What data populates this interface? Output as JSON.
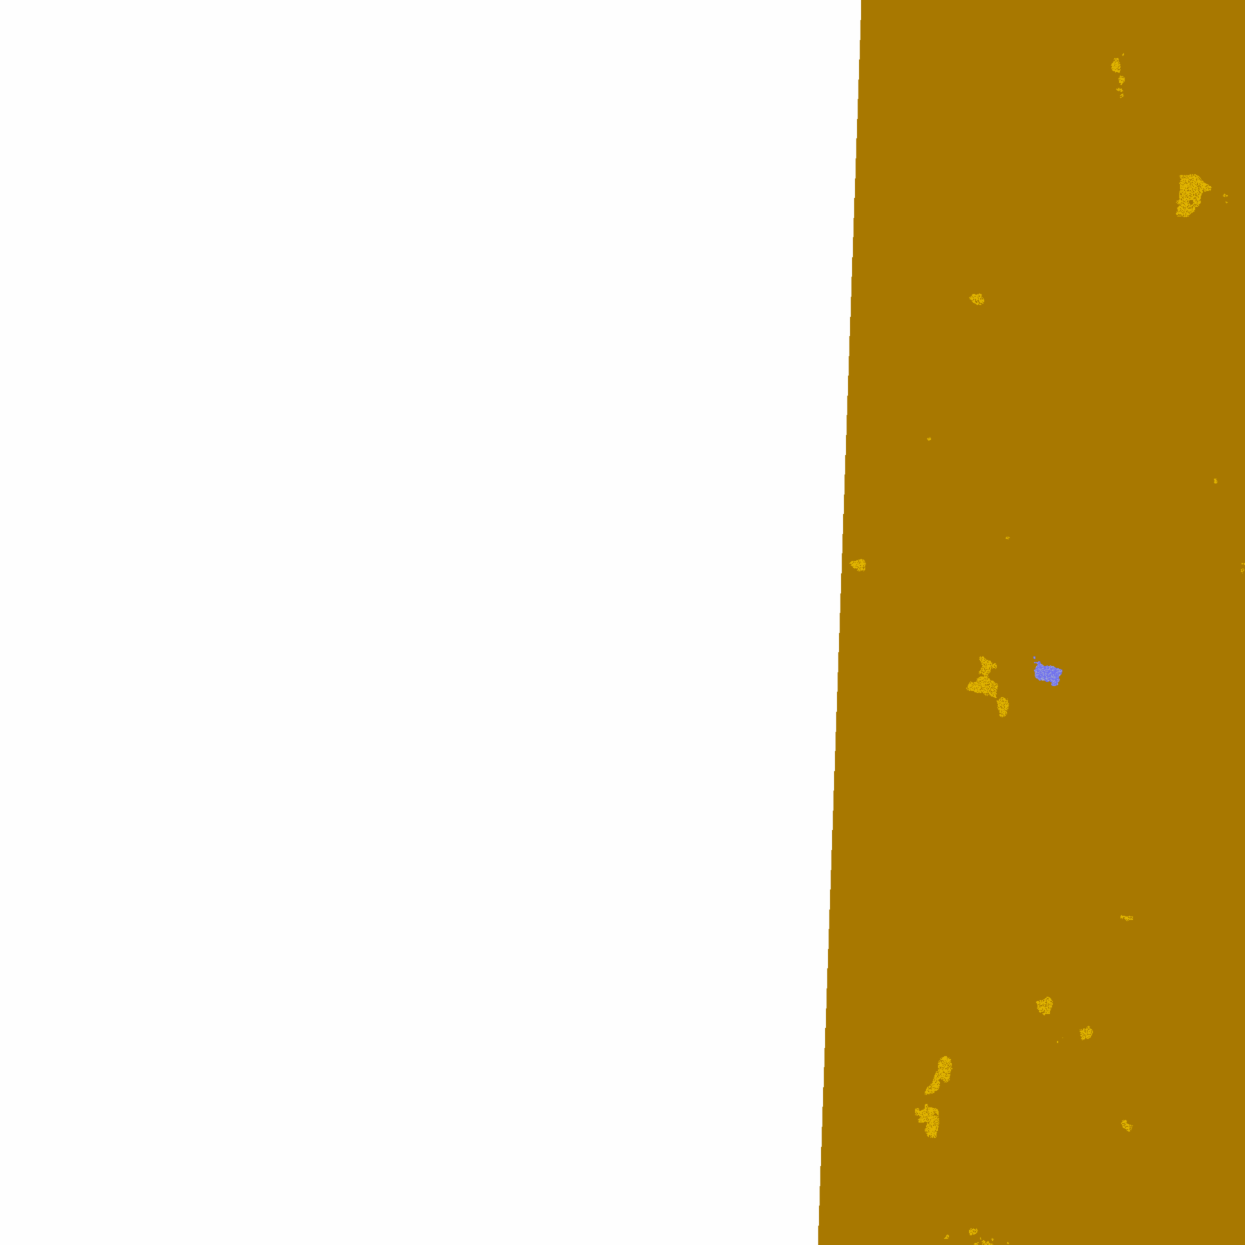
{
  "image": {
    "kind": "classified satellite swath",
    "background": "#fefefe",
    "palette": {
      "gold": "#e0b400",
      "dark_gold": "#a87800",
      "purple": "#7b33b3",
      "blue_violet": "#7272ee",
      "lavender": "#eeeefa",
      "magenta": "#cf4fe0",
      "grey_blue": "#a0a8d4",
      "clear": "#ffffff"
    }
  }
}
